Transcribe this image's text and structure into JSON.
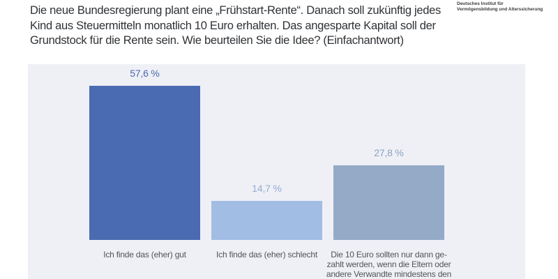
{
  "header": {
    "title": "Die neue Bundesregierung plant eine „Frühstart-Rente“. Danach soll zukünftig jedes Kind aus Steuermitteln monatlich 10 Euro erhalten. Das angesparte Kapital soll der Grundstock für die Rente sein. Wie beurteilen Sie die Idee? (Einfachantwort)",
    "title_lines": [
      "Die neue Bundesregierung plant eine „Frühstart-Rente“. Danach soll zukünftig jedes",
      "Kind aus Steuermitteln monatlich 10 Euro erhalten. Das angesparte Kapital soll der",
      "Grundstock für die Rente sein. Wie beurteilen Sie die Idee? (Einfachantwort)"
    ],
    "logo_line1": "Deutsches Institut für",
    "logo_line2": "Vermögensbildung und Alterssicherung"
  },
  "chart_data": {
    "type": "bar",
    "title": "Die neue Bundesregierung plant eine „Frühstart-Rente“. Danach soll zukünftig jedes Kind aus Steuermitteln monatlich 10 Euro erhalten. Das angesparte Kapital soll der Grundstock für die Rente sein. Wie beurteilen Sie die Idee? (Einfachantwort)",
    "categories": [
      "Ich finde das (eher) gut",
      "Ich finde das (eher) schlecht",
      "Die 10 Euro sollten nur dann gezahlt werden, wenn die Eltern oder andere Verwandte mindestens den"
    ],
    "category_label_lines": [
      [
        "Ich finde das (eher) gut"
      ],
      [
        "Ich finde das (eher) schlecht"
      ],
      [
        "Die 10 Euro sollten nur dann ge-",
        "zahlt werden, wenn die Eltern oder",
        "andere Verwandte mindestens den"
      ]
    ],
    "values": [
      57.6,
      14.7,
      27.8
    ],
    "value_labels": [
      "57,6 %",
      "14,7 %",
      "27,8 %"
    ],
    "bar_colors": [
      "#4a6bb1",
      "#a2bde3",
      "#94aac7"
    ],
    "value_label_colors": [
      "#4c6aa9",
      "#95aed3",
      "#8ba2be"
    ],
    "panel_background": "#eff0f6",
    "xlabel": "",
    "ylabel": "",
    "ylim": [
      0,
      60
    ],
    "grid": "off",
    "legend": "none"
  }
}
